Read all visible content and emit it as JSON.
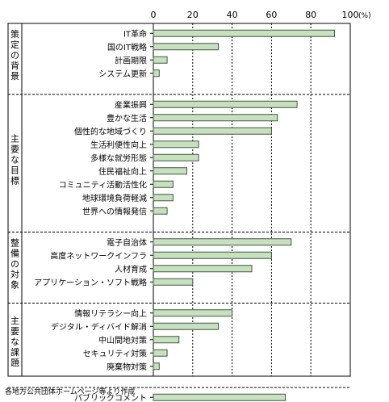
{
  "chart_data": {
    "type": "bar",
    "orientation": "horizontal",
    "unit": "(%)",
    "xlim": [
      0,
      100
    ],
    "xticks": [
      0,
      20,
      40,
      60,
      80,
      100
    ],
    "bar_color": "#c8e0c0",
    "bar_edge_color": "#3c5a3c",
    "groups": [
      {
        "label": "策定の背景",
        "categories": [
          "IT革命",
          "国のIT戦略",
          "計画期限",
          "システム更新"
        ],
        "values": [
          92,
          33,
          7,
          3
        ]
      },
      {
        "label": "主要な目標",
        "categories": [
          "産業振興",
          "豊かな生活",
          "個性的な地域づくり",
          "生活利便性向上",
          "多様な就労形態",
          "住民福祉向上",
          "コミュニティ活動活性化",
          "地球環境負荷軽減",
          "世界への情報発信"
        ],
        "values": [
          73,
          63,
          60,
          23,
          23,
          17,
          10,
          10,
          7
        ]
      },
      {
        "label": "整備の対象",
        "categories": [
          "電子自治体",
          "高度ネットワークインフラ",
          "人材育成",
          "アプリケーション・ソフト戦略"
        ],
        "values": [
          70,
          60,
          50,
          20
        ]
      },
      {
        "label": "主要な課題",
        "categories": [
          "情報リテラシー向上",
          "デジタル・ディバイド解消",
          "中山間地対策",
          "セキュリティ対策",
          "廃棄物対策"
        ],
        "values": [
          40,
          33,
          13,
          7,
          3
        ]
      },
      {
        "label": "",
        "categories": [
          "パブリックコメント"
        ],
        "values": [
          67
        ]
      }
    ]
  },
  "source_note": "各地方公共団体ホームページ等より作成"
}
